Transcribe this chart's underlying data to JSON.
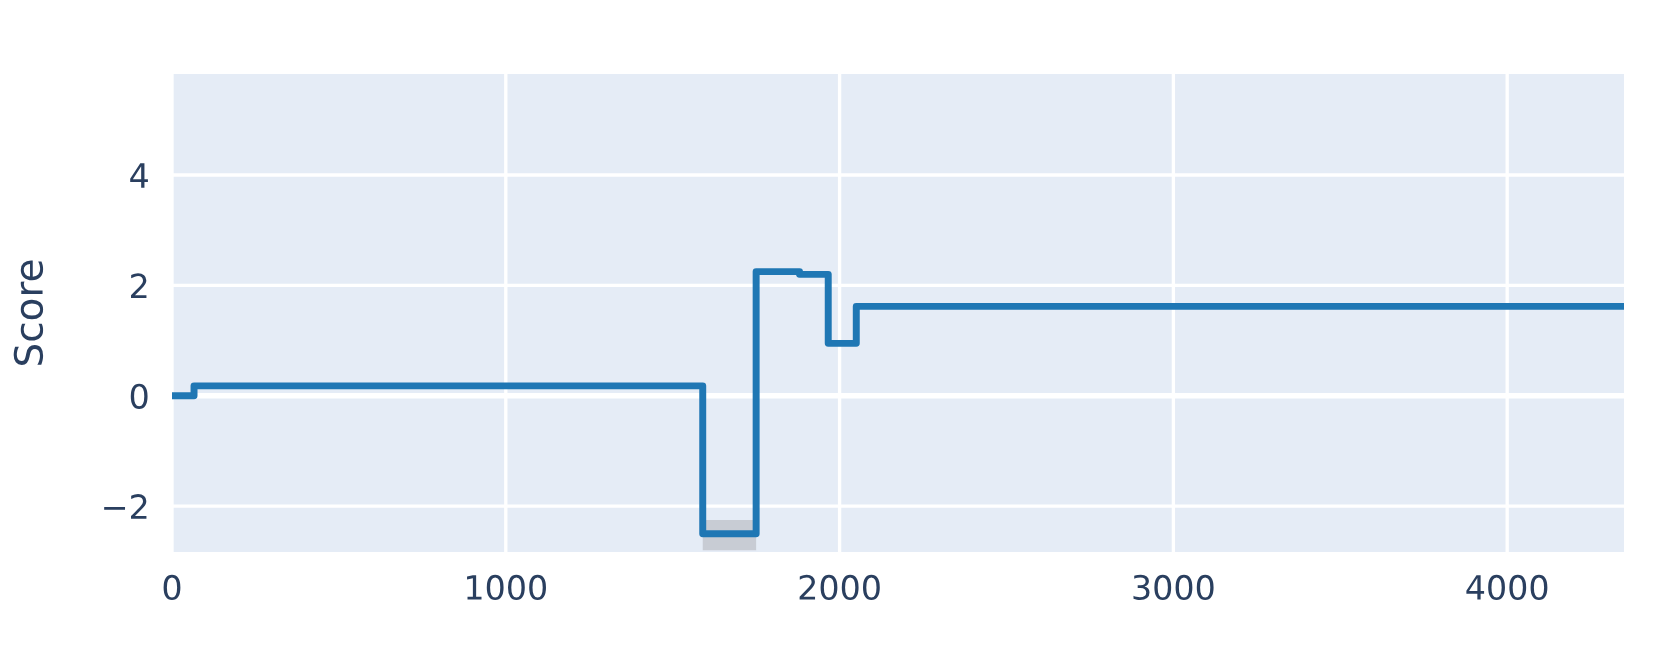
{
  "chart_data": {
    "type": "step",
    "ylabel": "Score",
    "x": [
      0,
      66,
      1590,
      1750,
      1880,
      1966,
      2050,
      4350
    ],
    "series": [
      {
        "color": "#1f77b4",
        "values": [
          0,
          0.18,
          -2.5,
          2.25,
          2.2,
          0.95,
          1.62,
          1.62
        ],
        "lower": [
          0,
          0.18,
          -2.8,
          2.25,
          2.2,
          0.95,
          1.62,
          1.62
        ],
        "upper": [
          0,
          0.18,
          -2.25,
          2.25,
          2.2,
          0.95,
          1.62,
          1.62
        ]
      }
    ],
    "xlim": [
      0,
      4350
    ],
    "ylim": [
      -2.83,
      5.83
    ],
    "xticks": [
      0,
      1000,
      2000,
      3000,
      4000
    ],
    "yticks": [
      {
        "value": -2,
        "label": "−2"
      },
      0,
      2,
      4
    ],
    "grid": true
  }
}
